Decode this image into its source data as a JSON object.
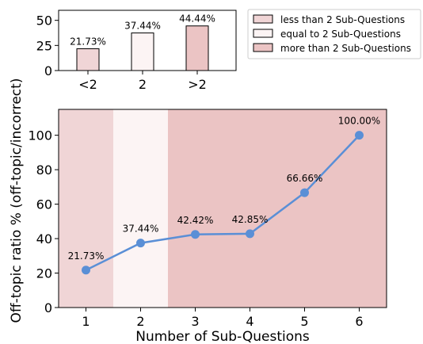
{
  "colors": {
    "band_less": "#f0d5d6",
    "band_equal": "#fcf4f4",
    "band_more": "#ebc4c4",
    "line": "#5a8fd6",
    "bar_edge": "#000000"
  },
  "chart_data": [
    {
      "type": "bar",
      "categories": [
        "<2",
        "2",
        ">2"
      ],
      "values": [
        21.73,
        37.44,
        44.44
      ],
      "data_labels": [
        "21.73%",
        "37.44%",
        "44.44%"
      ],
      "bar_colors": [
        "#f0d5d6",
        "#fcf4f4",
        "#ebc4c4"
      ],
      "ylim": [
        0,
        60
      ],
      "yticks": [
        0,
        25,
        50
      ],
      "legend": {
        "placement": "right of top chart",
        "entries": [
          {
            "label": "less than 2 Sub-Questions",
            "color": "#f0d5d6"
          },
          {
            "label": "equal to 2 Sub-Questions",
            "color": "#fcf4f4"
          },
          {
            "label": "more than 2 Sub-Questions",
            "color": "#ebc4c4"
          }
        ]
      }
    },
    {
      "type": "line",
      "x": [
        1,
        2,
        3,
        4,
        5,
        6
      ],
      "y": [
        21.73,
        37.44,
        42.42,
        42.85,
        66.66,
        100.0
      ],
      "data_labels": [
        "21.73%",
        "37.44%",
        "42.42%",
        "42.85%",
        "66.66%",
        "100.00%"
      ],
      "xlabel": "Number of Sub-Questions",
      "ylabel": "Off-topic ratio % (off-topic/incorrect)",
      "xlim": [
        0.5,
        6.5
      ],
      "ylim": [
        0,
        115
      ],
      "xticks": [
        1,
        2,
        3,
        4,
        5,
        6
      ],
      "yticks": [
        0,
        20,
        40,
        60,
        80,
        100
      ],
      "bands": [
        {
          "from": 0.5,
          "to": 1.5,
          "color": "#f0d5d6"
        },
        {
          "from": 1.5,
          "to": 2.5,
          "color": "#fcf4f4"
        },
        {
          "from": 2.5,
          "to": 6.5,
          "color": "#ebc4c4"
        }
      ],
      "grid": false
    }
  ]
}
